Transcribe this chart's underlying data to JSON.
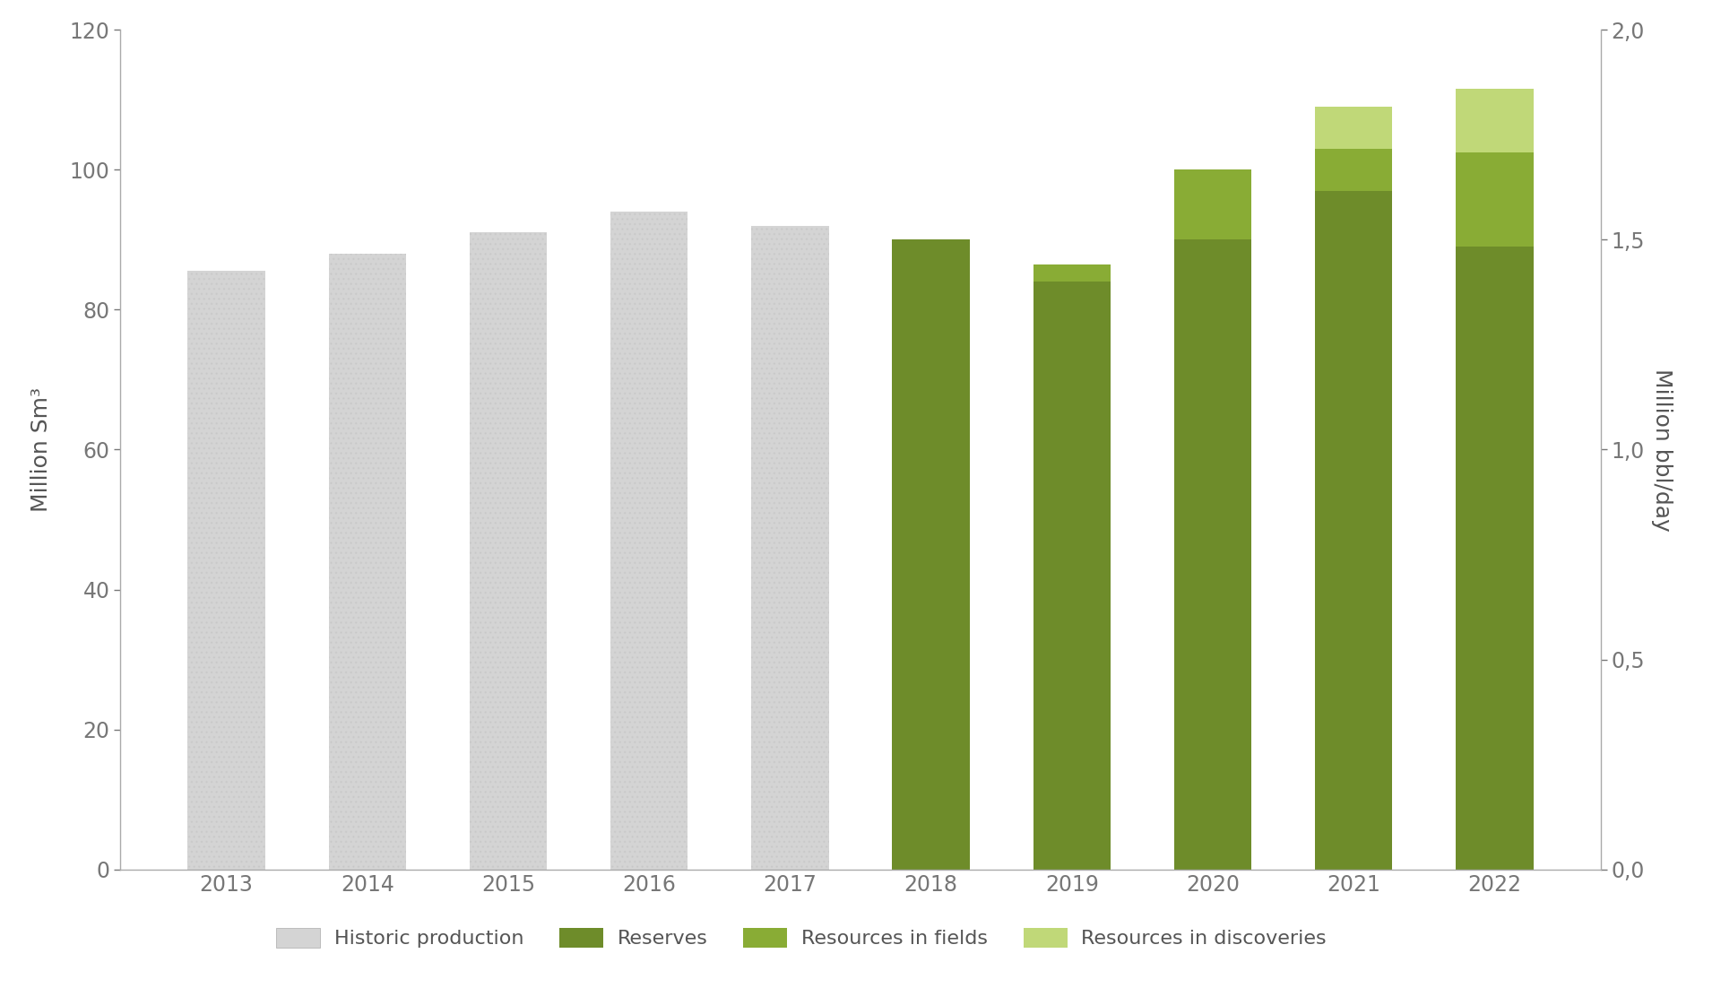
{
  "years": [
    2013,
    2014,
    2015,
    2016,
    2017,
    2018,
    2019,
    2020,
    2021,
    2022
  ],
  "historic_production": [
    85.5,
    88.0,
    91.0,
    94.0,
    92.0,
    0,
    0,
    0,
    0,
    0
  ],
  "reserves": [
    0,
    0,
    0,
    0,
    0,
    90.0,
    84.0,
    90.0,
    97.0,
    89.0
  ],
  "resources_in_fields": [
    0,
    0,
    0,
    0,
    0,
    0,
    2.5,
    10.0,
    6.0,
    13.5
  ],
  "resources_in_discoveries": [
    0,
    0,
    0,
    0,
    0,
    0,
    0,
    0,
    6.0,
    9.0
  ],
  "color_historic": "#d4d4d4",
  "color_reserves": "#6e8c2a",
  "color_resources_fields": "#89ac35",
  "color_resources_discoveries": "#c0d878",
  "ylabel_left": "Million Sm³",
  "ylabel_right": "Million bbl/day",
  "ylim_left": [
    0,
    120
  ],
  "ylim_right": [
    0,
    2.0
  ],
  "yticks_left": [
    0,
    20,
    40,
    60,
    80,
    100,
    120
  ],
  "yticks_right": [
    0.0,
    0.5,
    1.0,
    1.5,
    2.0
  ],
  "ytick_labels_right": [
    "0,0",
    "0,5",
    "1,0",
    "1,5",
    "2,0"
  ],
  "legend_labels": [
    "Historic production",
    "Reserves",
    "Resources in fields",
    "Resources in discoveries"
  ],
  "bar_width": 0.55,
  "background_color": "#ffffff",
  "axis_color": "#aaaaaa",
  "tick_color": "#777777",
  "font_color": "#555555",
  "font_size_ticks": 17,
  "font_size_label": 18
}
